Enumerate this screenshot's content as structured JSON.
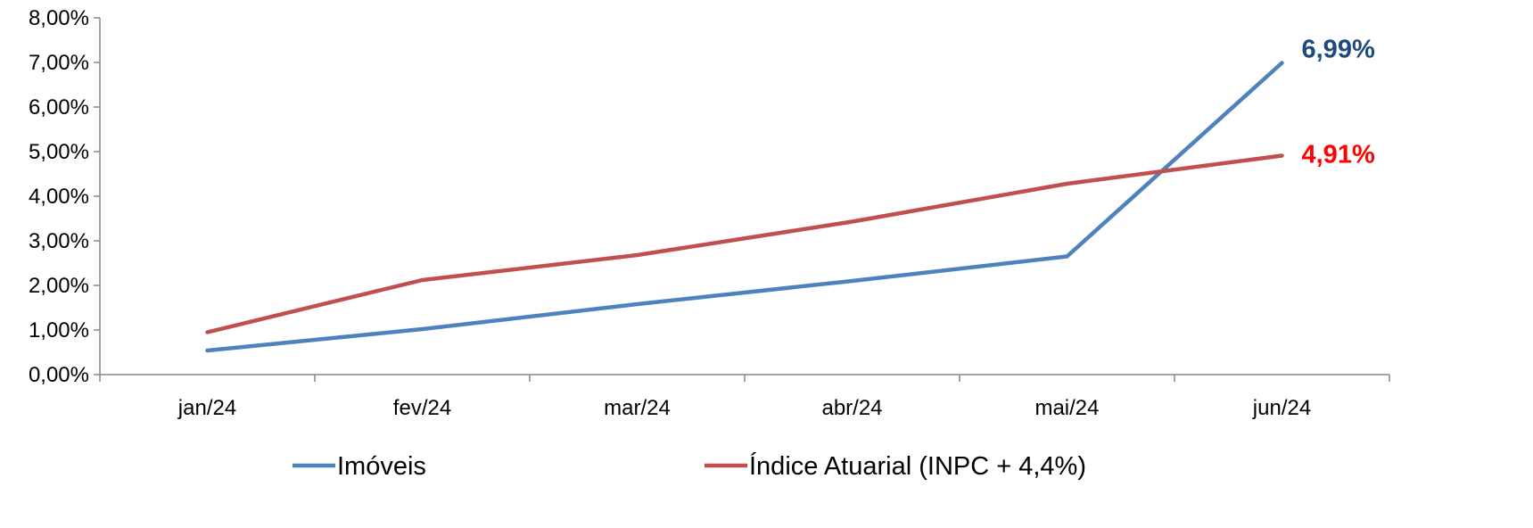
{
  "chart_data": {
    "type": "line",
    "categories": [
      "jan/24",
      "fev/24",
      "mar/24",
      "abr/24",
      "mai/24",
      "jun/24"
    ],
    "series": [
      {
        "name": "Imóveis",
        "values": [
          0.54,
          1.02,
          1.58,
          2.1,
          2.65,
          6.99
        ],
        "color": "#4F81BD",
        "end_label": "6,99%",
        "end_label_color": "#1F497D"
      },
      {
        "name": "Índice Atuarial (INPC + 4,4%)",
        "values": [
          0.95,
          2.12,
          2.68,
          3.43,
          4.28,
          4.91
        ],
        "color": "#C0504D",
        "end_label": "4,91%",
        "end_label_color": "#FF0000"
      }
    ],
    "y_ticks": [
      "0,00%",
      "1,00%",
      "2,00%",
      "3,00%",
      "4,00%",
      "5,00%",
      "6,00%",
      "7,00%",
      "8,00%"
    ],
    "ylim": [
      0,
      8
    ],
    "title": "",
    "xlabel": "",
    "ylabel": "",
    "grid": false,
    "legend_position": "bottom"
  }
}
